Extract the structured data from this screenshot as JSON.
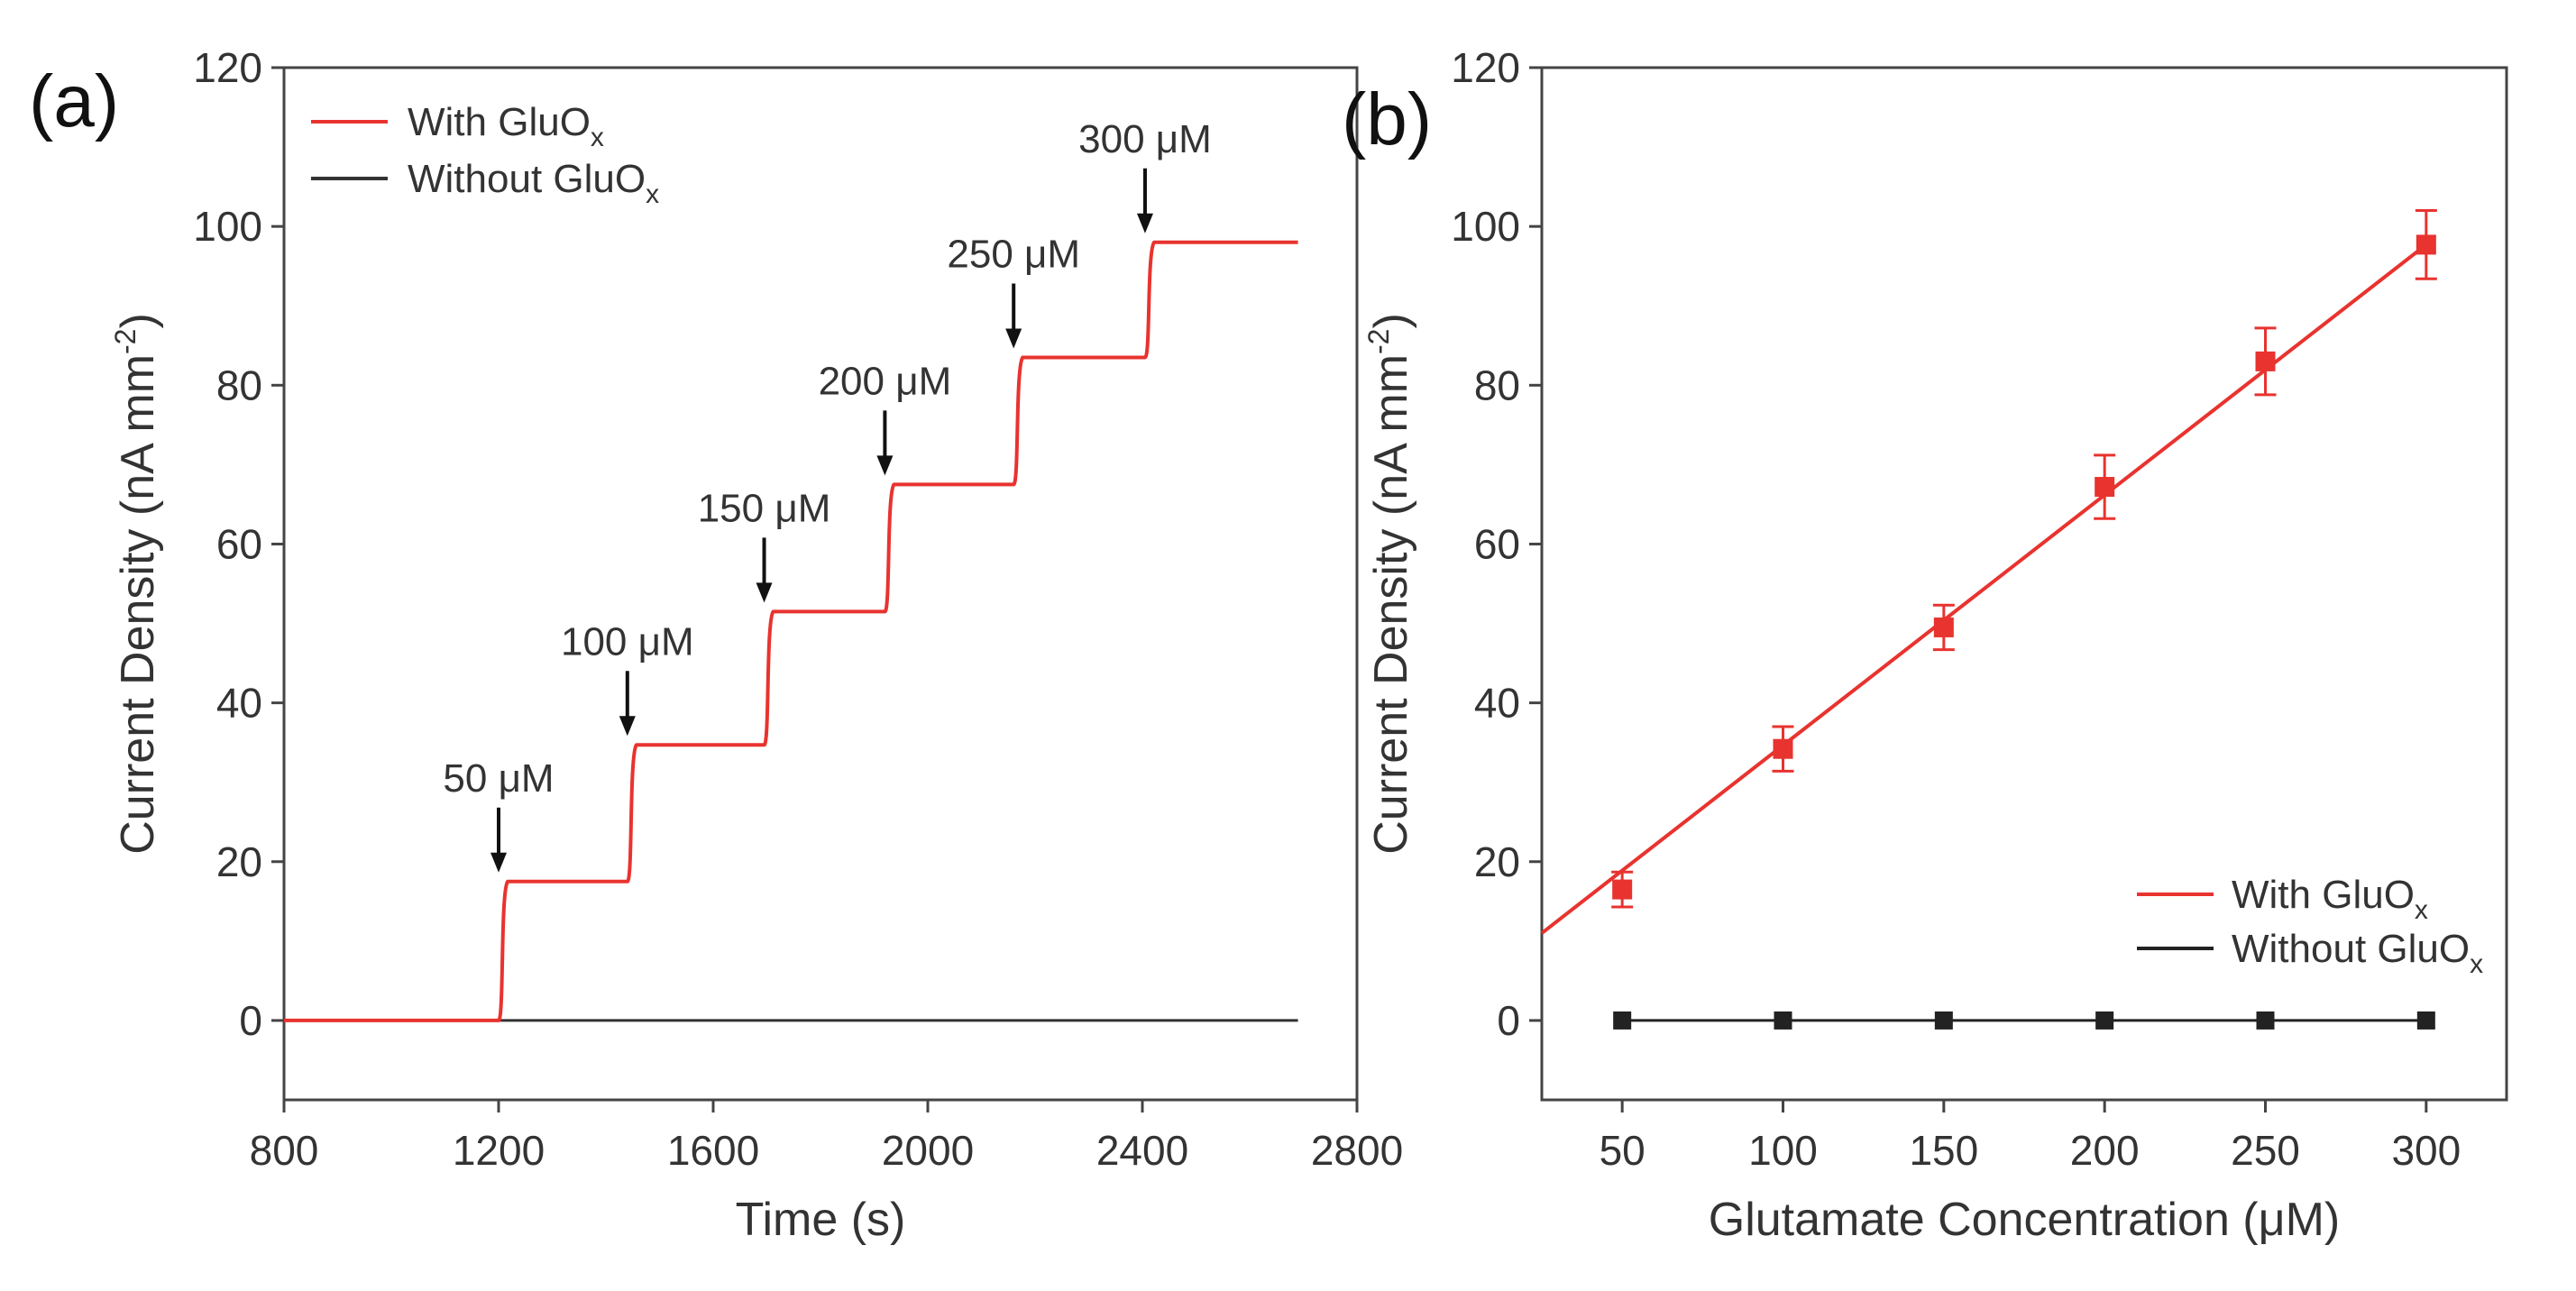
{
  "chart_data": [
    {
      "panel_label": "(a)",
      "type": "line",
      "xlabel": "Time (s)",
      "ylabel": "Current Density (nA mm",
      "ylabel_sup": "-2",
      "ylabel_close": ")",
      "xlim": [
        800,
        2800
      ],
      "ylim": [
        -10,
        120
      ],
      "xticks": [
        800,
        1200,
        1600,
        2000,
        2400,
        2800
      ],
      "yticks": [
        0,
        20,
        40,
        60,
        80,
        100,
        120
      ],
      "legend_position": "top-left",
      "series": [
        {
          "name": "With GluO",
          "name_sub": "x",
          "color": "#e8332f",
          "steps": [
            {
              "t": 800,
              "y": 0
            },
            {
              "t": 1200,
              "y": 17.5
            },
            {
              "t": 1440,
              "y": 34.7
            },
            {
              "t": 1695,
              "y": 51.5
            },
            {
              "t": 1920,
              "y": 67.5
            },
            {
              "t": 2160,
              "y": 83.5
            },
            {
              "t": 2405,
              "y": 98
            }
          ],
          "x_end": 2690
        },
        {
          "name": "Without GluO",
          "name_sub": "x",
          "color": "#333333",
          "steps": [
            {
              "t": 800,
              "y": 0
            }
          ],
          "x_end": 2690
        }
      ],
      "annotations": [
        {
          "text": "50 μM",
          "x": 1200,
          "y": 17.5
        },
        {
          "text": "100 μM",
          "x": 1440,
          "y": 34.7
        },
        {
          "text": "150 μM",
          "x": 1695,
          "y": 51.5
        },
        {
          "text": "200 μM",
          "x": 1920,
          "y": 67.5
        },
        {
          "text": "250 μM",
          "x": 2160,
          "y": 83.5
        },
        {
          "text": "300 μM",
          "x": 2405,
          "y": 98
        }
      ]
    },
    {
      "panel_label": "(b)",
      "type": "scatter",
      "xlabel": "Glutamate Concentration (μM)",
      "ylabel": "Current Density (nA mm",
      "ylabel_sup": "-2",
      "ylabel_close": ")",
      "xlim": [
        25,
        325
      ],
      "ylim": [
        -10,
        120
      ],
      "xticks": [
        50,
        100,
        150,
        200,
        250,
        300
      ],
      "yticks": [
        0,
        20,
        40,
        60,
        80,
        100,
        120
      ],
      "legend_position": "bottom-right",
      "series": [
        {
          "name": "With GluO",
          "name_sub": "x",
          "color": "#e8332f",
          "x": [
            50,
            100,
            150,
            200,
            250,
            300
          ],
          "y": [
            16.5,
            34.2,
            49.5,
            67.2,
            83,
            97.7
          ],
          "err": [
            2.2,
            2.8,
            2.8,
            4,
            4.2,
            4.3
          ],
          "fit": {
            "x": [
              25,
              300
            ],
            "y": [
              11,
              97.7
            ]
          }
        },
        {
          "name": "Without GluO",
          "name_sub": "x",
          "color": "#222222",
          "x": [
            50,
            100,
            150,
            200,
            250,
            300
          ],
          "y": [
            0,
            0,
            0,
            0,
            0,
            0
          ]
        }
      ]
    }
  ]
}
